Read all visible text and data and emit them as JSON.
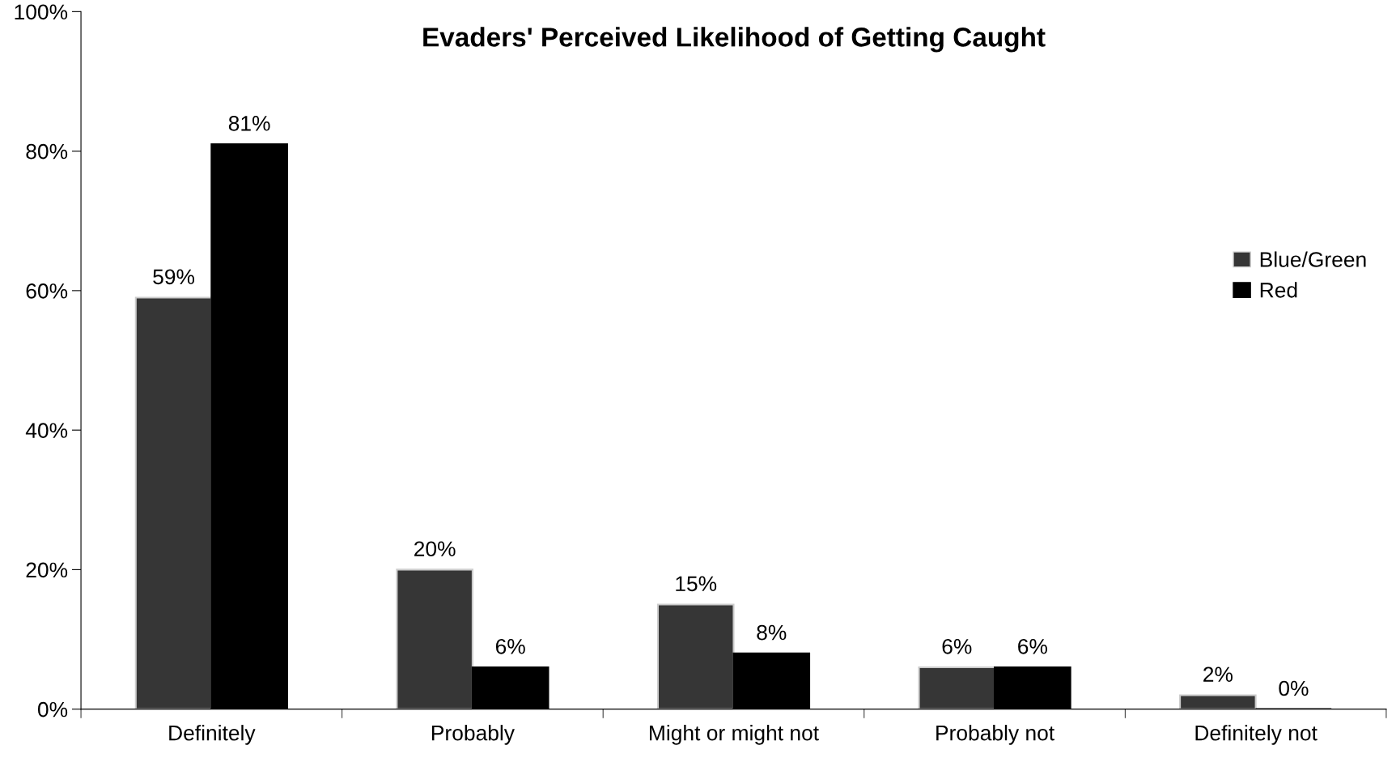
{
  "chart_data": {
    "type": "bar",
    "title": "Evaders' Perceived Likelihood of Getting Caught",
    "categories": [
      "Definitely",
      "Probably",
      "Might or might not",
      "Probably not",
      "Definitely not"
    ],
    "series": [
      {
        "name": "Blue/Green",
        "color": "#363636",
        "values": [
          59,
          20,
          15,
          6,
          2
        ],
        "value_labels": [
          "59%",
          "20%",
          "15%",
          "6%",
          "2%"
        ]
      },
      {
        "name": "Red",
        "color": "#000000",
        "values": [
          81,
          6,
          8,
          6,
          0
        ],
        "value_labels": [
          "81%",
          "6%",
          "8%",
          "6%",
          "0%"
        ]
      }
    ],
    "ylim": [
      0,
      100
    ],
    "yticks": [
      {
        "value": 0,
        "label": "0%"
      },
      {
        "value": 20,
        "label": "20%"
      },
      {
        "value": 40,
        "label": "40%"
      },
      {
        "value": 60,
        "label": "60%"
      },
      {
        "value": 80,
        "label": "80%"
      },
      {
        "value": 100,
        "label": "100%"
      }
    ],
    "legend": "right",
    "grid": false
  }
}
